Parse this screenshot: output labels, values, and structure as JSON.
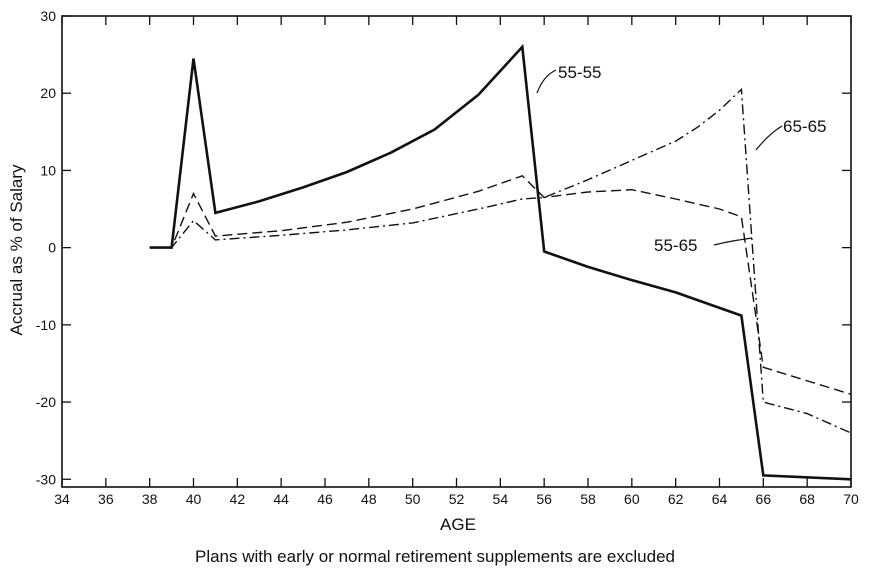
{
  "chart_data": {
    "type": "line",
    "xlabel": "AGE",
    "ylabel": "Accrual as % of Salary",
    "caption": "Plans with early or normal retirement supplements are excluded",
    "xlim": [
      34,
      70
    ],
    "ylim": [
      -31,
      30
    ],
    "xticks": [
      "34",
      "36",
      "38",
      "40",
      "42",
      "44",
      "46",
      "48",
      "50",
      "52",
      "54",
      "56",
      "58",
      "60",
      "62",
      "64",
      "66",
      "68",
      "70"
    ],
    "yticks": [
      "30",
      "20",
      "10",
      "0",
      "-10",
      "-20",
      "-30"
    ],
    "ytick_values": [
      30,
      20,
      10,
      0,
      -10,
      -20,
      -30
    ],
    "grid": false,
    "series": [
      {
        "name": "55-55",
        "style": "solid",
        "x": [
          38,
          39,
          40,
          41,
          43,
          45,
          47,
          49,
          51,
          53,
          55,
          56,
          58,
          60,
          62,
          65,
          66,
          70
        ],
        "y": [
          0,
          0,
          24.5,
          4.5,
          6,
          7.8,
          9.8,
          12.3,
          15.3,
          19.8,
          26,
          -0.5,
          -2.5,
          -4.2,
          -5.8,
          -8.8,
          -29.5,
          -30
        ]
      },
      {
        "name": "55-65",
        "style": "dashed",
        "x": [
          38,
          39,
          40,
          41,
          44,
          47,
          50,
          53,
          55,
          56,
          58,
          60,
          62,
          64,
          65,
          66,
          70
        ],
        "y": [
          0,
          0,
          7,
          1.5,
          2.2,
          3.3,
          5,
          7.3,
          9.3,
          6.5,
          7.2,
          7.5,
          6.3,
          5,
          4,
          -15.5,
          -19
        ]
      },
      {
        "name": "65-65",
        "style": "dash-dot",
        "x": [
          38,
          39,
          40,
          41,
          44,
          47,
          50,
          53,
          55,
          56,
          58,
          60,
          62,
          63,
          64,
          65,
          66,
          68,
          70
        ],
        "y": [
          0,
          0,
          3.5,
          1,
          1.6,
          2.3,
          3.2,
          5,
          6.3,
          6.5,
          8.8,
          11.3,
          13.8,
          15.6,
          17.8,
          20.5,
          -20,
          -21.5,
          -24
        ]
      }
    ]
  }
}
